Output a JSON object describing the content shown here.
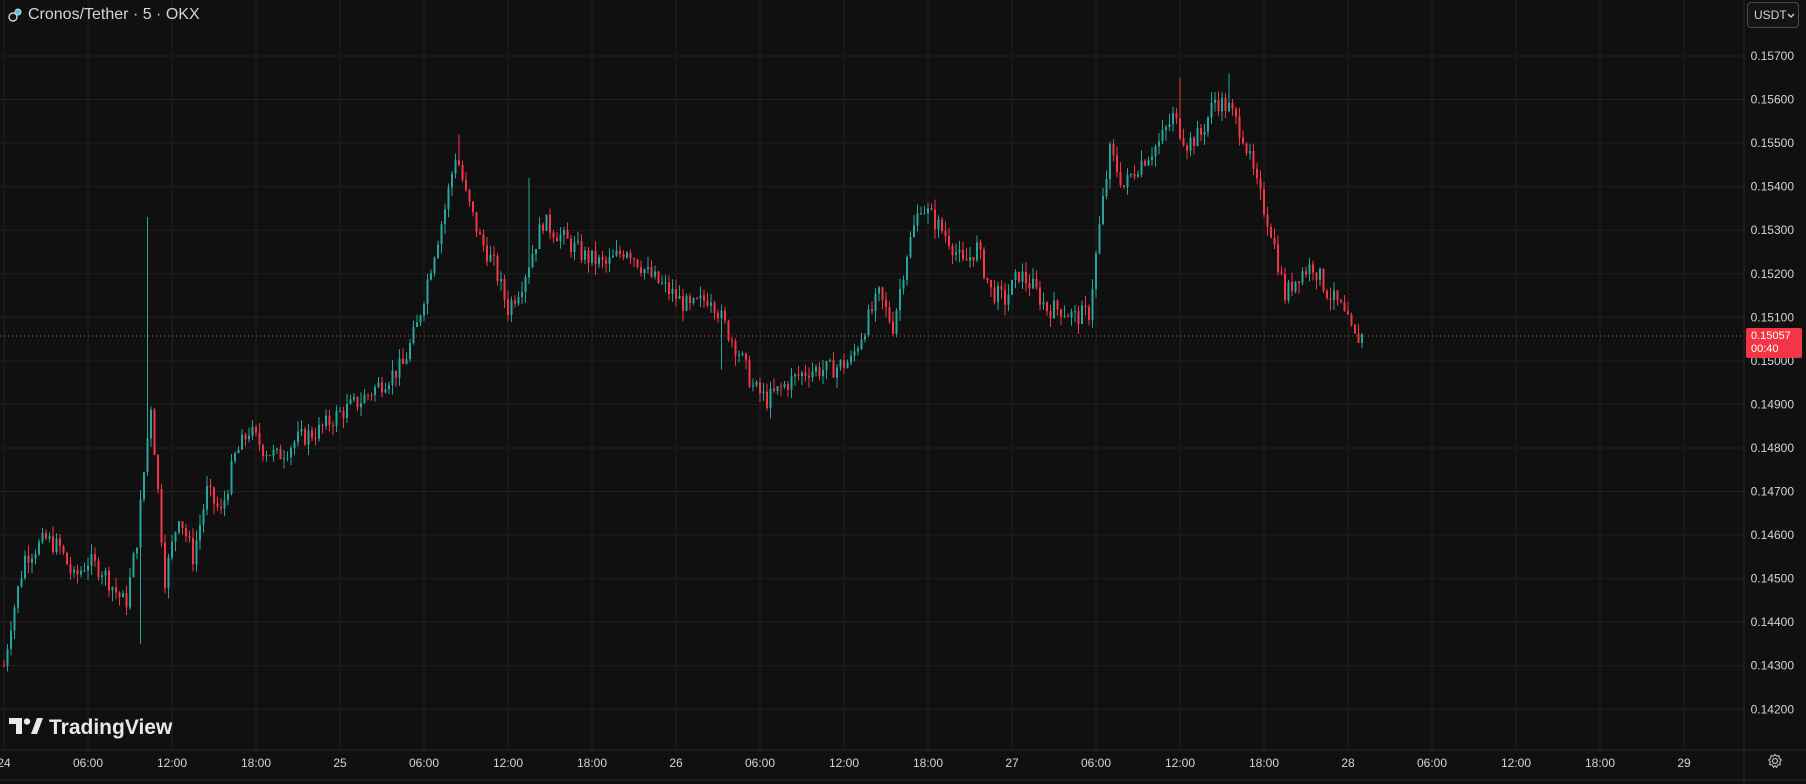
{
  "header": {
    "title": "Cronos/Tether · 5 · OKX",
    "coin_icon": "cronos-coin-icon"
  },
  "currency_select": {
    "value": "USDT",
    "icon": "chevron-down-icon"
  },
  "price_badge": {
    "price": "0.15057",
    "countdown": "00:40",
    "color": "#f23645"
  },
  "logo": {
    "text": "TradingView",
    "icon": "tradingview-logo-icon"
  },
  "settings": {
    "icon": "gear-icon"
  },
  "colors": {
    "background": "#101010",
    "grid": "#1f1f1f",
    "up": "#26a69a",
    "down": "#f23645",
    "axis_text": "#d1d4dc"
  },
  "chart_data": {
    "type": "candlestick",
    "title": "Cronos/Tether · 5 · OKX",
    "x_ticks": [
      "24",
      "06:00",
      "12:00",
      "18:00",
      "25",
      "06:00",
      "12:00",
      "18:00",
      "26",
      "06:00",
      "12:00",
      "18:00",
      "27",
      "06:00",
      "12:00",
      "18:00",
      "28",
      "06:00",
      "12:00",
      "18:00",
      "29"
    ],
    "y_ticks": [
      "0.15700",
      "0.15600",
      "0.15500",
      "0.15400",
      "0.15300",
      "0.15200",
      "0.15100",
      "0.15000",
      "0.14900",
      "0.14800",
      "0.14700",
      "0.14600",
      "0.14500",
      "0.14400",
      "0.14300",
      "0.14200"
    ],
    "ylim": [
      0.1415,
      0.1587
    ],
    "xlim_hours": [
      0,
      120
    ],
    "last_price": 0.15057,
    "grid": true,
    "price_path": [
      [
        0,
        0.143
      ],
      [
        0.5,
        0.144
      ],
      [
        1.5,
        0.1455
      ],
      [
        3,
        0.1459
      ],
      [
        4,
        0.1457
      ],
      [
        5,
        0.145
      ],
      [
        6,
        0.1454
      ],
      [
        7,
        0.1452
      ],
      [
        8,
        0.1447
      ],
      [
        8.7,
        0.1444
      ],
      [
        9.5,
        0.1459
      ],
      [
        10.5,
        0.149
      ],
      [
        11.5,
        0.145
      ],
      [
        12.5,
        0.1465
      ],
      [
        13.5,
        0.1455
      ],
      [
        14.5,
        0.147
      ],
      [
        15.5,
        0.1465
      ],
      [
        16.5,
        0.1478
      ],
      [
        17.5,
        0.1484
      ],
      [
        18.5,
        0.148
      ],
      [
        19.5,
        0.1478
      ],
      [
        21,
        0.1482
      ],
      [
        22.5,
        0.1484
      ],
      [
        24,
        0.1488
      ],
      [
        25.5,
        0.1491
      ],
      [
        27,
        0.1495
      ],
      [
        28.5,
        0.1499
      ],
      [
        29.5,
        0.1508
      ],
      [
        30.5,
        0.1522
      ],
      [
        31.5,
        0.1535
      ],
      [
        32.3,
        0.1548
      ],
      [
        33,
        0.1538
      ],
      [
        34,
        0.1528
      ],
      [
        35,
        0.1522
      ],
      [
        36,
        0.1512
      ],
      [
        37,
        0.1518
      ],
      [
        38.5,
        0.1532
      ],
      [
        40,
        0.1528
      ],
      [
        41.5,
        0.1524
      ],
      [
        43,
        0.1522
      ],
      [
        44.5,
        0.1526
      ],
      [
        46,
        0.152
      ],
      [
        47.5,
        0.1516
      ],
      [
        49,
        0.1512
      ],
      [
        50.5,
        0.1515
      ],
      [
        51.5,
        0.1508
      ],
      [
        52.5,
        0.1502
      ],
      [
        53.5,
        0.1494
      ],
      [
        54.5,
        0.1491
      ],
      [
        56,
        0.1495
      ],
      [
        57.5,
        0.1498
      ],
      [
        59,
        0.1498
      ],
      [
        60.5,
        0.15
      ],
      [
        61.5,
        0.1508
      ],
      [
        62.5,
        0.1515
      ],
      [
        63.5,
        0.1508
      ],
      [
        64.5,
        0.1525
      ],
      [
        65.5,
        0.1536
      ],
      [
        66.5,
        0.1532
      ],
      [
        67.5,
        0.1528
      ],
      [
        68.5,
        0.1522
      ],
      [
        69.5,
        0.1526
      ],
      [
        70.5,
        0.1516
      ],
      [
        71.5,
        0.1514
      ],
      [
        72.5,
        0.152
      ],
      [
        73.5,
        0.1517
      ],
      [
        74.5,
        0.1512
      ],
      [
        75.5,
        0.1512
      ],
      [
        76.5,
        0.151
      ],
      [
        77.5,
        0.1511
      ],
      [
        78.3,
        0.1532
      ],
      [
        79,
        0.1548
      ],
      [
        80,
        0.154
      ],
      [
        81,
        0.1545
      ],
      [
        82.5,
        0.155
      ],
      [
        83.5,
        0.1556
      ],
      [
        84.5,
        0.155
      ],
      [
        85.5,
        0.1552
      ],
      [
        86.5,
        0.156
      ],
      [
        87.5,
        0.1558
      ],
      [
        88.5,
        0.1552
      ],
      [
        89.5,
        0.154
      ],
      [
        90.5,
        0.153
      ],
      [
        91.5,
        0.1515
      ],
      [
        92.5,
        0.152
      ],
      [
        93.5,
        0.1522
      ],
      [
        94.5,
        0.1516
      ],
      [
        95.5,
        0.1512
      ],
      [
        96.5,
        0.1505
      ],
      [
        97,
        0.15057
      ]
    ],
    "spikes": [
      {
        "t": 10.2,
        "high": 0.1533
      },
      {
        "t": 9.8,
        "low": 0.1435
      },
      {
        "t": 32.4,
        "high": 0.1552
      },
      {
        "t": 37.6,
        "high": 0.1542
      },
      {
        "t": 51.2,
        "low": 0.1498
      },
      {
        "t": 54.8,
        "low": 0.1488
      },
      {
        "t": 87.4,
        "high": 0.1566
      },
      {
        "t": 84.1,
        "high": 0.1565
      }
    ]
  }
}
